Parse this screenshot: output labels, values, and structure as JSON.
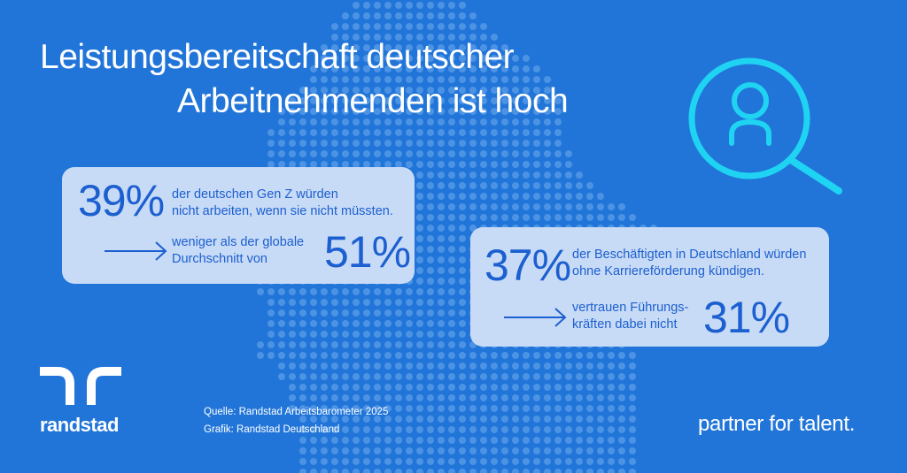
{
  "title": {
    "line1": "Leistungsbereitschaft deutscher",
    "line2": "Arbeitnehmenden ist hoch"
  },
  "cards": [
    {
      "main_value": "39%",
      "main_text": [
        "der  deutschen Gen Z würden",
        "nicht arbeiten, wenn sie nicht müssten."
      ],
      "compare_text": [
        "weniger als der globale",
        "Durchschnitt von"
      ],
      "compare_value": "51%"
    },
    {
      "main_value": "37%",
      "main_text": [
        "der Beschäftigten in Deutschland würden",
        "ohne Karriereförderung kündigen."
      ],
      "compare_text": [
        "vertrauen Führungs-",
        "kräften dabei nicht"
      ],
      "compare_value": "31%"
    }
  ],
  "icon": "search-person-icon",
  "logo": {
    "wordmark": "randstad"
  },
  "source": {
    "line1": "Quelle: Randstad Arbeitsbarometer 2025",
    "line2": "Grafik: Randstad Deutschland"
  },
  "tagline": "partner for talent.",
  "colors": {
    "background": "#2175d9",
    "map_dots": "#4c93e4",
    "card": "#c8dbf6",
    "card_text": "#1c5fd0",
    "icon": "#1fd3f2"
  }
}
